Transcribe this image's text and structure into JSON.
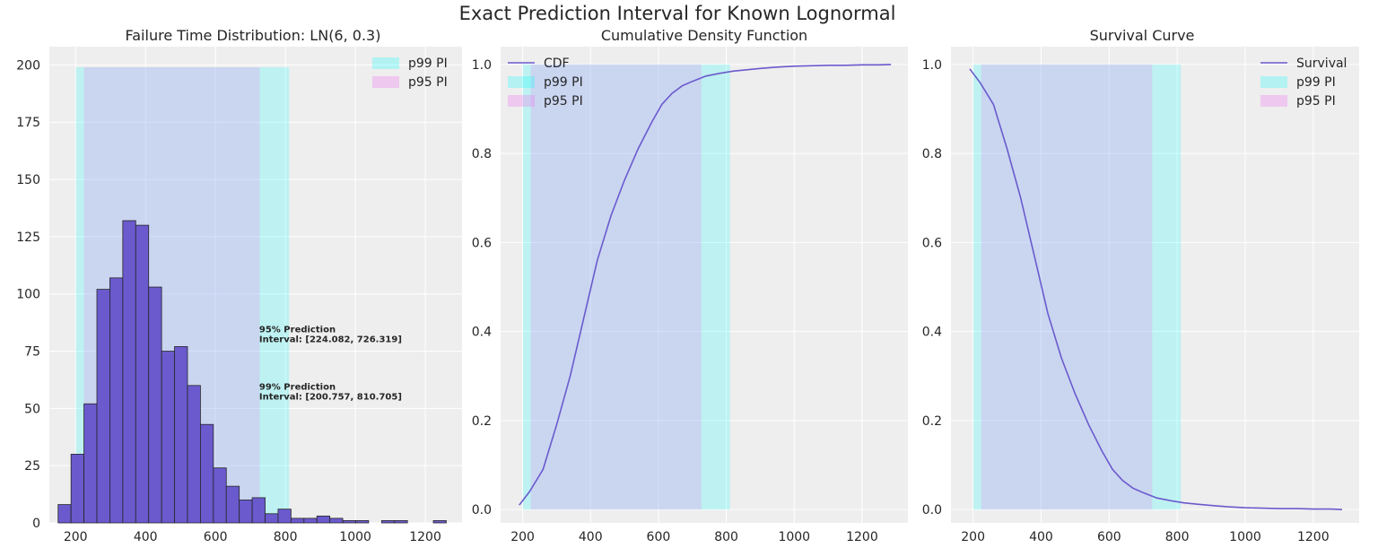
{
  "figure": {
    "title": "Exact Prediction Interval for Known Lognormal"
  },
  "colors": {
    "panel_bg": "#eeeeee",
    "grid": "#ffffff",
    "p99_band": "#00ffff",
    "p95_band": "#ee82ee",
    "bar_fill": "#6a5acd",
    "bar_blue": "#4169e1",
    "bar_edge": "#262626",
    "line": "#6a5acd"
  },
  "chart_data": [
    {
      "type": "bar",
      "title": "Failure Time Distribution: LN(6, 0.3)",
      "xlabel": "",
      "ylabel": "",
      "xlim": [
        125,
        1305
      ],
      "ylim": [
        0,
        208
      ],
      "xticks": [
        200,
        400,
        600,
        800,
        1000,
        1200
      ],
      "yticks": [
        0,
        25,
        50,
        75,
        100,
        125,
        150,
        175,
        200
      ],
      "bin_width": 37,
      "bins": [
        {
          "x": 150,
          "value": 8
        },
        {
          "x": 187,
          "value": 30
        },
        {
          "x": 224,
          "value": 52
        },
        {
          "x": 261,
          "value": 102
        },
        {
          "x": 298,
          "value": 107
        },
        {
          "x": 335,
          "value": 132
        },
        {
          "x": 372,
          "value": 130
        },
        {
          "x": 409,
          "value": 103
        },
        {
          "x": 446,
          "value": 75
        },
        {
          "x": 483,
          "value": 77
        },
        {
          "x": 520,
          "value": 60
        },
        {
          "x": 557,
          "value": 43
        },
        {
          "x": 594,
          "value": 24
        },
        {
          "x": 631,
          "value": 16
        },
        {
          "x": 668,
          "value": 10
        },
        {
          "x": 705,
          "value": 11
        },
        {
          "x": 742,
          "value": 4
        },
        {
          "x": 779,
          "value": 6
        },
        {
          "x": 816,
          "value": 2
        },
        {
          "x": 853,
          "value": 2
        },
        {
          "x": 890,
          "value": 3
        },
        {
          "x": 927,
          "value": 2
        },
        {
          "x": 964,
          "value": 1
        },
        {
          "x": 1001,
          "value": 1
        },
        {
          "x": 1075,
          "value": 1
        },
        {
          "x": 1112,
          "value": 1
        },
        {
          "x": 1223,
          "value": 1
        }
      ],
      "p99_interval": [
        200.757,
        810.705
      ],
      "p95_interval": [
        224.082,
        726.319
      ],
      "band_top": 199,
      "legend": [
        "p99 PI",
        "p95 PI"
      ],
      "legend_position": "top-right",
      "annotations": [
        {
          "lines": [
            "95% Prediction",
            "Interval: [224.082, 726.319]"
          ],
          "x": 725,
          "y": 82
        },
        {
          "lines": [
            "99% Prediction",
            "Interval: [200.757, 810.705]"
          ],
          "x": 725,
          "y": 57
        }
      ],
      "grid": true
    },
    {
      "type": "line",
      "title": "Cumulative Density Function",
      "xlabel": "",
      "ylabel": "",
      "xlim": [
        135,
        1335
      ],
      "ylim": [
        -0.03,
        1.04
      ],
      "xticks": [
        200,
        400,
        600,
        800,
        1000,
        1200
      ],
      "yticks": [
        0.0,
        0.2,
        0.4,
        0.6,
        0.8,
        1.0
      ],
      "ytick_labels": [
        "0.0",
        "0.2",
        "0.4",
        "0.6",
        "0.8",
        "1.0"
      ],
      "p99_interval": [
        200.757,
        810.705
      ],
      "p95_interval": [
        224.082,
        726.319
      ],
      "legend": [
        "CDF",
        "p99 PI",
        "p95 PI"
      ],
      "legend_position": "top-left",
      "series": [
        {
          "name": "CDF",
          "x": [
            190,
            220,
            260,
            300,
            340,
            380,
            420,
            460,
            500,
            540,
            580,
            610,
            640,
            670,
            700,
            740,
            780,
            820,
            860,
            900,
            950,
            1000,
            1050,
            1100,
            1150,
            1200,
            1250,
            1285
          ],
          "y": [
            0.01,
            0.04,
            0.09,
            0.19,
            0.3,
            0.43,
            0.56,
            0.66,
            0.74,
            0.81,
            0.87,
            0.91,
            0.935,
            0.952,
            0.962,
            0.974,
            0.98,
            0.985,
            0.988,
            0.991,
            0.994,
            0.996,
            0.997,
            0.998,
            0.998,
            0.999,
            0.999,
            1.0
          ]
        }
      ],
      "grid": true
    },
    {
      "type": "line",
      "title": "Survival Curve",
      "xlabel": "",
      "ylabel": "",
      "xlim": [
        135,
        1335
      ],
      "ylim": [
        -0.03,
        1.04
      ],
      "xticks": [
        200,
        400,
        600,
        800,
        1000,
        1200
      ],
      "yticks": [
        0.0,
        0.2,
        0.4,
        0.6,
        0.8,
        1.0
      ],
      "ytick_labels": [
        "0.0",
        "0.2",
        "0.4",
        "0.6",
        "0.8",
        "1.0"
      ],
      "p99_interval": [
        200.757,
        810.705
      ],
      "p95_interval": [
        224.082,
        726.319
      ],
      "legend": [
        "Survival",
        "p99 PI",
        "p95 PI"
      ],
      "legend_position": "top-right",
      "series": [
        {
          "name": "Survival",
          "x": [
            190,
            220,
            260,
            300,
            340,
            380,
            420,
            460,
            500,
            540,
            580,
            610,
            640,
            670,
            700,
            740,
            780,
            820,
            860,
            900,
            950,
            1000,
            1050,
            1100,
            1150,
            1200,
            1250,
            1285
          ],
          "y": [
            0.99,
            0.96,
            0.91,
            0.81,
            0.7,
            0.57,
            0.44,
            0.34,
            0.26,
            0.19,
            0.13,
            0.09,
            0.065,
            0.048,
            0.038,
            0.026,
            0.02,
            0.015,
            0.012,
            0.009,
            0.006,
            0.004,
            0.003,
            0.002,
            0.002,
            0.001,
            0.001,
            0.0
          ]
        }
      ],
      "grid": true
    }
  ]
}
